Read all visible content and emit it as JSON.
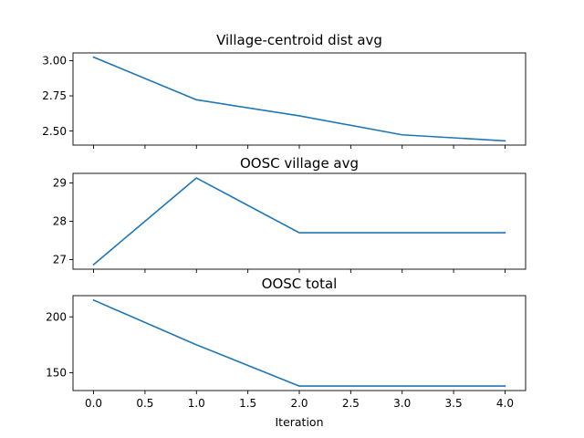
{
  "colors": {
    "series": "#1f77b4",
    "axes": "#000000",
    "background": "#ffffff"
  },
  "chart_data": [
    {
      "type": "line",
      "title": "Village-centroid dist avg",
      "xlabel": "",
      "ylabel": "",
      "x": [
        0,
        1,
        2,
        3,
        4
      ],
      "values": [
        3.025,
        2.722,
        2.608,
        2.473,
        2.43
      ],
      "xlim": [
        -0.2,
        4.2
      ],
      "ylim": [
        2.4,
        3.055
      ],
      "yticks": [
        3.0,
        2.75,
        2.5
      ],
      "ytick_labels": [
        "3.00",
        "2.75",
        "2.50"
      ],
      "xtick_labels_shown": false,
      "grid": false
    },
    {
      "type": "line",
      "title": "OOSC village avg",
      "xlabel": "",
      "ylabel": "",
      "x": [
        0,
        1,
        2,
        3,
        4
      ],
      "values": [
        26.87,
        29.13,
        27.7,
        27.7,
        27.7
      ],
      "xlim": [
        -0.2,
        4.2
      ],
      "ylim": [
        26.75,
        29.25
      ],
      "yticks": [
        29,
        28,
        27
      ],
      "ytick_labels": [
        "29",
        "28",
        "27"
      ],
      "xtick_labels_shown": false,
      "grid": false
    },
    {
      "type": "line",
      "title": "OOSC total",
      "xlabel": "Iteration",
      "ylabel": "",
      "x": [
        0,
        1,
        2,
        3,
        4
      ],
      "values": [
        215,
        175,
        138,
        138,
        138
      ],
      "xlim": [
        -0.2,
        4.2
      ],
      "ylim": [
        134,
        219
      ],
      "yticks": [
        200,
        150
      ],
      "ytick_labels": [
        "200",
        "150"
      ],
      "xticks": [
        0.0,
        0.5,
        1.0,
        1.5,
        2.0,
        2.5,
        3.0,
        3.5,
        4.0
      ],
      "xtick_labels": [
        "0.0",
        "0.5",
        "1.0",
        "1.5",
        "2.0",
        "2.5",
        "3.0",
        "3.5",
        "4.0"
      ],
      "xtick_labels_shown": true,
      "grid": false
    }
  ]
}
